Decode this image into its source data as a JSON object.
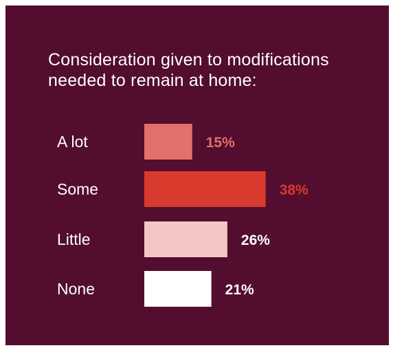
{
  "chart_data": {
    "type": "bar",
    "orientation": "horizontal",
    "title_lines": [
      "Consideration given to modifications",
      "needed to remain at home:"
    ],
    "categories": [
      "A lot",
      "Some",
      "Little",
      "None"
    ],
    "values": [
      15,
      38,
      26,
      21
    ],
    "value_labels": [
      "15%",
      "38%",
      "26%",
      "21%"
    ],
    "bar_colors": [
      "#e3706a",
      "#d83a2e",
      "#f4c7c4",
      "#ffffff"
    ],
    "label_colors": [
      "#e3706a",
      "#d83a2e",
      "#ffffff",
      "#ffffff"
    ],
    "axes_visible": false,
    "grid": false,
    "legend": "none",
    "background": "#520d2f"
  }
}
